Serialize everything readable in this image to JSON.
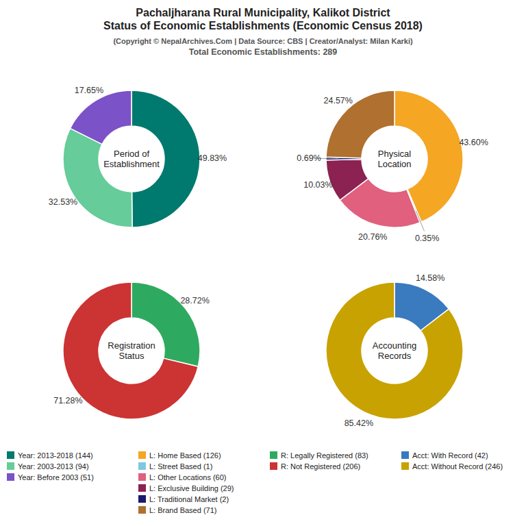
{
  "title": "Pachaljharana Rural Municipality, Kalikot District\nStatus of Economic Establishments (Economic Census 2018)",
  "subtitle": [
    "(Copyright © NepalArchives.Com | Data Source: CBS | Creator/Analyst: Milan Karki)",
    "Total Economic Establishments: 289"
  ],
  "chart_data": [
    {
      "type": "pie",
      "title": "Period of\nEstablishment",
      "categories": [
        "Year: 2013-2018 (144)",
        "Year: 2003-2013 (94)",
        "Year: Before 2003 (51)"
      ],
      "values": [
        49.83,
        32.53,
        17.65
      ],
      "value_labels": [
        "49.83%",
        "32.53%",
        "17.65%"
      ],
      "colors": [
        "#007a6e",
        "#66cc99",
        "#7b52c8"
      ],
      "data_labels": true,
      "legend": "bottom"
    },
    {
      "type": "pie",
      "title": "Physical\nLocation",
      "categories": [
        "L: Home Based (126)",
        "L: Street Based (1)",
        "L: Other Locations (60)",
        "L: Exclusive Building (29)",
        "L: Traditional Market (2)",
        "L: Brand Based (71)"
      ],
      "values": [
        43.6,
        0.35,
        20.76,
        10.03,
        0.69,
        24.57
      ],
      "value_labels": [
        "43.60%",
        "0.35%",
        "20.76%",
        "10.03%",
        "0.69%",
        "24.57%"
      ],
      "colors": [
        "#f5a623",
        "#7ec8e3",
        "#e0607e",
        "#8b2252",
        "#1a1a6e",
        "#b07030"
      ],
      "data_labels": true,
      "legend": "bottom"
    },
    {
      "type": "pie",
      "title": "Registration\nStatus",
      "categories": [
        "R: Legally Registered (83)",
        "R: Not Registered (206)"
      ],
      "values": [
        28.72,
        71.28
      ],
      "value_labels": [
        "28.72%",
        "71.28%"
      ],
      "colors": [
        "#2eaa60",
        "#cc3333"
      ],
      "data_labels": true,
      "legend": "bottom"
    },
    {
      "type": "pie",
      "title": "Accounting\nRecords",
      "categories": [
        "Acct: With Record (42)",
        "Acct: Without Record (246)"
      ],
      "values": [
        14.58,
        85.42
      ],
      "value_labels": [
        "14.58%",
        "85.42%"
      ],
      "colors": [
        "#3a7abf",
        "#c8a200"
      ],
      "data_labels": true,
      "legend": "bottom"
    }
  ]
}
